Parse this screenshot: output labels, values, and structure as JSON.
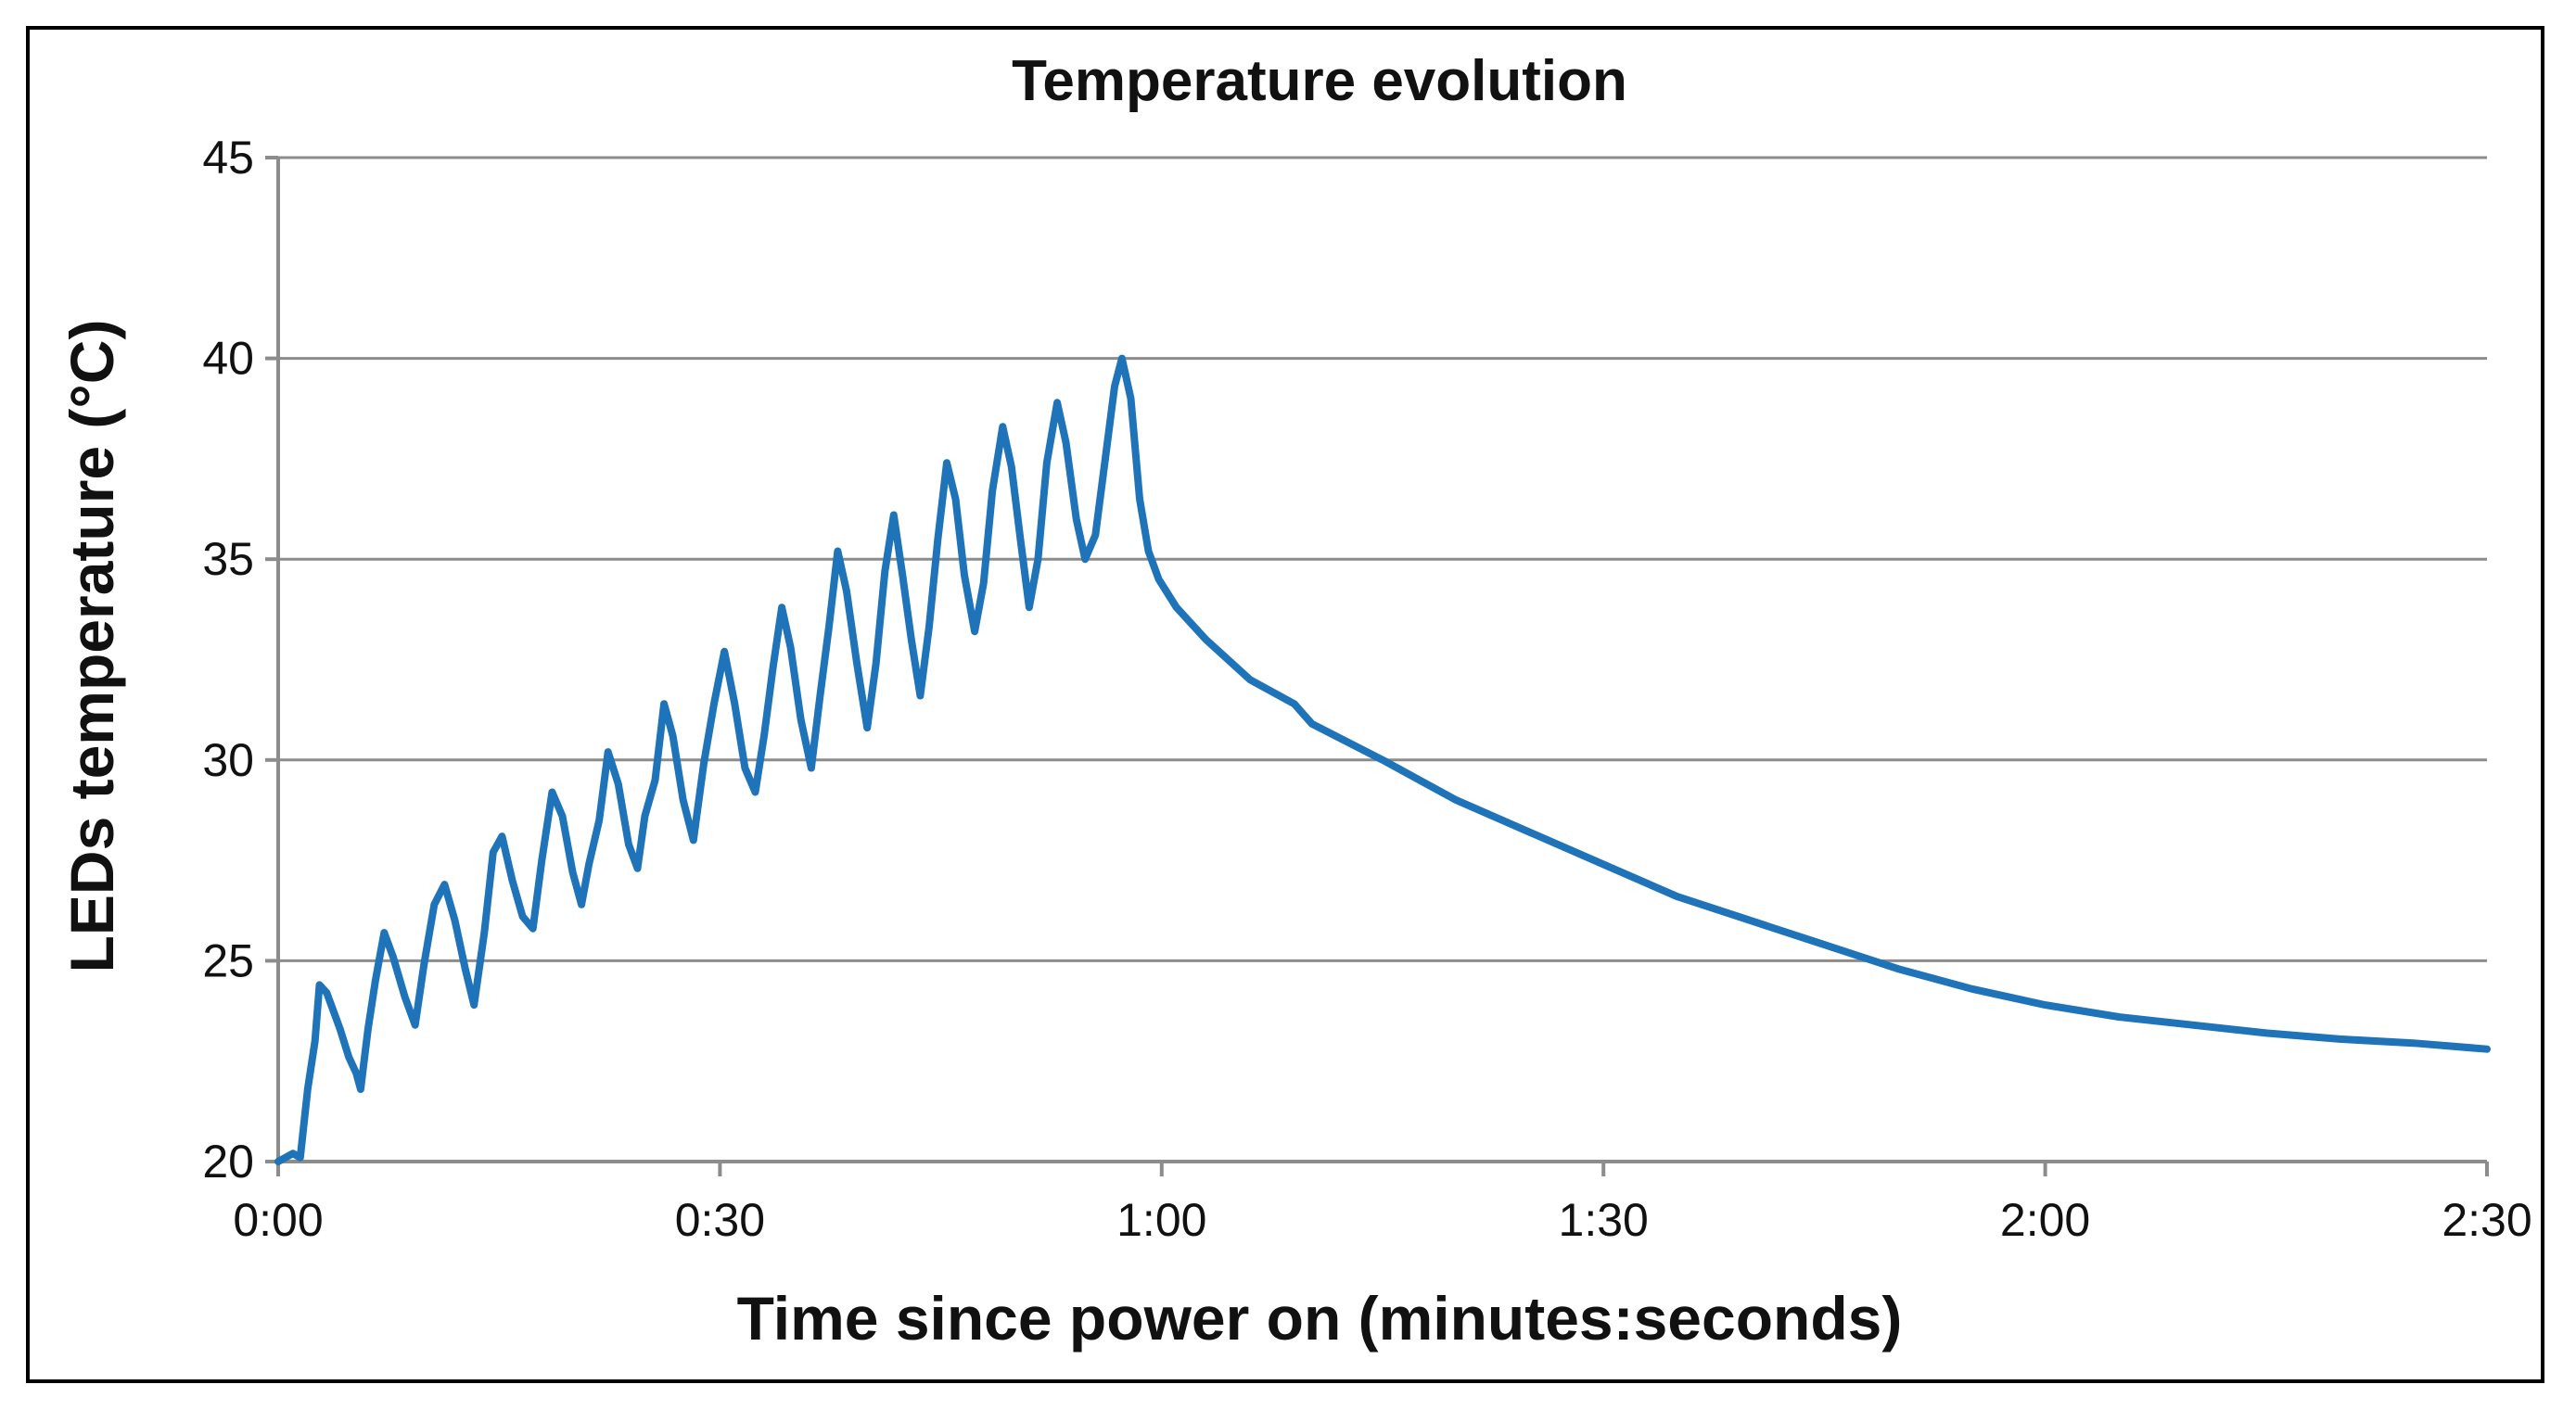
{
  "chart_data": {
    "type": "line",
    "title": "Temperature evolution",
    "xlabel": "Time since power on (minutes:seconds)",
    "ylabel": "LEDs temperature (°C)",
    "xlim": [
      0,
      150
    ],
    "ylim": [
      20,
      45
    ],
    "x_ticks": [
      {
        "value": 0,
        "label": "0:00"
      },
      {
        "value": 30,
        "label": "0:30"
      },
      {
        "value": 60,
        "label": "1:00"
      },
      {
        "value": 90,
        "label": "1:30"
      },
      {
        "value": 120,
        "label": "2:00"
      },
      {
        "value": 150,
        "label": "2:30"
      }
    ],
    "y_ticks": [
      {
        "value": 20,
        "label": "20"
      },
      {
        "value": 25,
        "label": "25"
      },
      {
        "value": 30,
        "label": "30"
      },
      {
        "value": 35,
        "label": "35"
      },
      {
        "value": 40,
        "label": "40"
      },
      {
        "value": 45,
        "label": "45"
      }
    ],
    "grid": "horizontal",
    "series": [
      {
        "name": "LEDs temperature",
        "color": "#1f73b8",
        "points": [
          [
            0,
            20.0
          ],
          [
            1,
            20.2
          ],
          [
            1.5,
            20.1
          ],
          [
            2,
            21.8
          ],
          [
            2.5,
            23.0
          ],
          [
            2.8,
            24.4
          ],
          [
            3.3,
            24.2
          ],
          [
            4.2,
            23.3
          ],
          [
            4.8,
            22.6
          ],
          [
            5.3,
            22.2
          ],
          [
            5.6,
            21.8
          ],
          [
            6.1,
            23.3
          ],
          [
            6.6,
            24.5
          ],
          [
            7.2,
            25.7
          ],
          [
            7.8,
            25.1
          ],
          [
            8.6,
            24.1
          ],
          [
            9.3,
            23.4
          ],
          [
            9.9,
            24.9
          ],
          [
            10.6,
            26.4
          ],
          [
            11.3,
            26.9
          ],
          [
            12.0,
            26.0
          ],
          [
            12.7,
            24.8
          ],
          [
            13.3,
            23.9
          ],
          [
            14.0,
            25.7
          ],
          [
            14.6,
            27.7
          ],
          [
            15.2,
            28.1
          ],
          [
            15.9,
            27.0
          ],
          [
            16.6,
            26.1
          ],
          [
            17.3,
            25.8
          ],
          [
            17.9,
            27.5
          ],
          [
            18.6,
            29.2
          ],
          [
            19.3,
            28.6
          ],
          [
            20.0,
            27.2
          ],
          [
            20.6,
            26.4
          ],
          [
            21.1,
            27.4
          ],
          [
            21.8,
            28.5
          ],
          [
            22.4,
            30.2
          ],
          [
            23.1,
            29.4
          ],
          [
            23.8,
            27.9
          ],
          [
            24.4,
            27.3
          ],
          [
            24.9,
            28.6
          ],
          [
            25.6,
            29.5
          ],
          [
            26.2,
            31.4
          ],
          [
            26.8,
            30.6
          ],
          [
            27.5,
            29.0
          ],
          [
            28.2,
            28.0
          ],
          [
            28.9,
            29.9
          ],
          [
            29.6,
            31.4
          ],
          [
            30.3,
            32.7
          ],
          [
            31.0,
            31.4
          ],
          [
            31.7,
            29.8
          ],
          [
            32.4,
            29.2
          ],
          [
            33.0,
            30.6
          ],
          [
            33.6,
            32.3
          ],
          [
            34.2,
            33.8
          ],
          [
            34.8,
            32.8
          ],
          [
            35.5,
            31.0
          ],
          [
            36.2,
            29.8
          ],
          [
            36.8,
            31.6
          ],
          [
            37.4,
            33.3
          ],
          [
            38.0,
            35.2
          ],
          [
            38.6,
            34.2
          ],
          [
            39.3,
            32.4
          ],
          [
            40.0,
            30.8
          ],
          [
            40.6,
            32.4
          ],
          [
            41.2,
            34.7
          ],
          [
            41.8,
            36.1
          ],
          [
            42.4,
            34.6
          ],
          [
            43.0,
            33.0
          ],
          [
            43.6,
            31.6
          ],
          [
            44.2,
            33.3
          ],
          [
            44.8,
            35.5
          ],
          [
            45.4,
            37.4
          ],
          [
            46.0,
            36.5
          ],
          [
            46.6,
            34.6
          ],
          [
            47.3,
            33.2
          ],
          [
            47.9,
            34.4
          ],
          [
            48.5,
            36.7
          ],
          [
            49.2,
            38.3
          ],
          [
            49.8,
            37.3
          ],
          [
            50.4,
            35.5
          ],
          [
            51.0,
            33.8
          ],
          [
            51.6,
            35.0
          ],
          [
            52.2,
            37.4
          ],
          [
            52.9,
            38.9
          ],
          [
            53.5,
            37.9
          ],
          [
            54.2,
            36.0
          ],
          [
            54.8,
            35.0
          ],
          [
            55.5,
            35.6
          ],
          [
            56.2,
            37.6
          ],
          [
            56.8,
            39.3
          ],
          [
            57.3,
            40.0
          ],
          [
            57.9,
            39.0
          ],
          [
            58.5,
            36.5
          ],
          [
            59.1,
            35.2
          ],
          [
            59.8,
            34.5
          ],
          [
            61.0,
            33.8
          ],
          [
            63.0,
            33.0
          ],
          [
            66.0,
            32.0
          ],
          [
            69.0,
            31.4
          ],
          [
            70.2,
            30.9
          ],
          [
            75.0,
            30.0
          ],
          [
            80.0,
            29.0
          ],
          [
            85.0,
            28.2
          ],
          [
            90.0,
            27.4
          ],
          [
            95.0,
            26.6
          ],
          [
            100.0,
            26.0
          ],
          [
            105.0,
            25.4
          ],
          [
            110.0,
            24.8
          ],
          [
            115.0,
            24.3
          ],
          [
            120.0,
            23.9
          ],
          [
            125.0,
            23.6
          ],
          [
            130.0,
            23.4
          ],
          [
            135.0,
            23.2
          ],
          [
            140.0,
            23.05
          ],
          [
            145.0,
            22.95
          ],
          [
            150.0,
            22.8
          ]
        ]
      }
    ]
  }
}
